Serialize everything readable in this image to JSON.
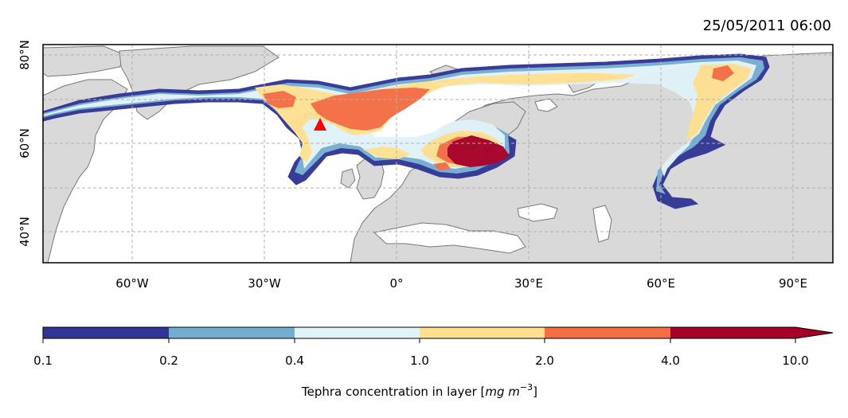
{
  "title": "25/05/2011 06:00",
  "map": {
    "lat_labels": [
      "80°N",
      "60°N",
      "40°N"
    ],
    "lon_labels": [
      "60°W",
      "30°W",
      "0°",
      "30°E",
      "60°E",
      "90°E"
    ],
    "gridlines": true,
    "grid_style": "dashed",
    "land_color": "#d9d9d9",
    "ocean_color": "#ffffff",
    "coast_color": "#777777",
    "source_marker": {
      "shape": "triangle",
      "color": "#ff0000"
    }
  },
  "colorbar": {
    "label_prefix": "Tephra concentration in layer [",
    "label_unit": "mg m",
    "label_exp": "−3",
    "label_suffix": "]",
    "ticks": [
      "0.1",
      "0.2",
      "0.4",
      "1.0",
      "2.0",
      "4.0",
      "10.0"
    ],
    "colors": [
      "#313695",
      "#74add1",
      "#e0f3f8",
      "#fee090",
      "#f46d43",
      "#a50026"
    ],
    "extend": "max"
  }
}
